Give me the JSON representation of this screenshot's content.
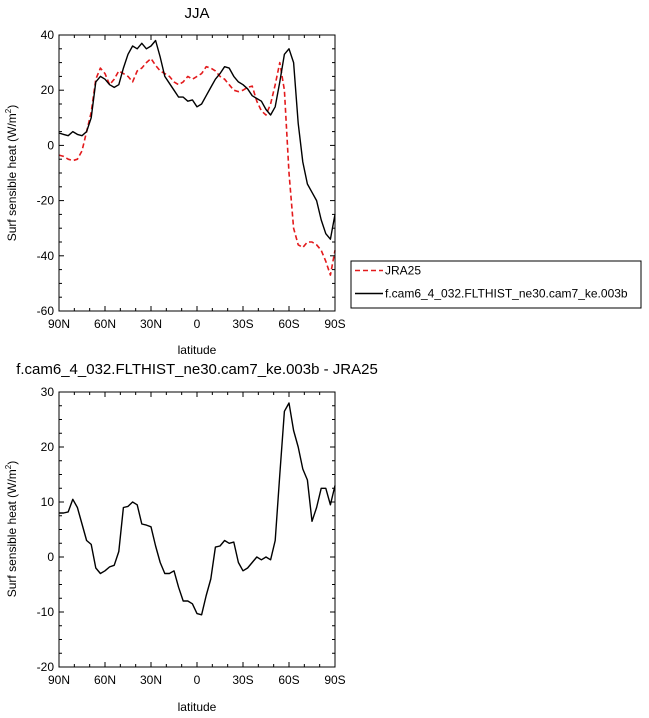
{
  "chart_data": [
    {
      "type": "line",
      "title": "JJA",
      "xlabel": "latitude",
      "ylabel": "Surf sensible heat (W/m",
      "ylabel_sup": "2",
      "ylabel_close": ")",
      "xlim": [
        90,
        -90
      ],
      "ylim": [
        -60,
        40
      ],
      "x_ticks": [
        90,
        60,
        30,
        0,
        -30,
        -60,
        -90
      ],
      "x_tick_labels": [
        "90N",
        "60N",
        "30N",
        "0",
        "30S",
        "60S",
        "90S"
      ],
      "y_ticks": [
        -60,
        -40,
        -20,
        0,
        20,
        40
      ],
      "y_tick_labels": [
        "-60",
        "-40",
        "-20",
        "0",
        "20",
        "40"
      ],
      "legend": "right",
      "series": [
        {
          "name": "JRA25",
          "color": "#e31a1c",
          "dash": "dashed",
          "x": [
            90,
            87,
            84,
            81,
            78,
            75,
            72,
            69,
            66,
            63,
            60,
            57,
            54,
            51,
            48,
            45,
            42,
            39,
            36,
            33,
            30,
            27,
            24,
            21,
            18,
            15,
            12,
            9,
            6,
            3,
            0,
            -3,
            -6,
            -9,
            -12,
            -15,
            -18,
            -21,
            -24,
            -27,
            -30,
            -33,
            -36,
            -39,
            -42,
            -45,
            -48,
            -51,
            -54,
            -57,
            -60,
            -63,
            -66,
            -69,
            -72,
            -75,
            -78,
            -81,
            -84,
            -87,
            -90
          ],
          "y": [
            -3.5,
            -4,
            -5,
            -5.5,
            -5,
            -2,
            5,
            12,
            24,
            28,
            26,
            22,
            24,
            27,
            26,
            25,
            23,
            27,
            28,
            30,
            31.5,
            29,
            27,
            26,
            25,
            23,
            22,
            23,
            25,
            24,
            25,
            26,
            28.5,
            28,
            27,
            25,
            24,
            22,
            20,
            19.5,
            20,
            21,
            21.5,
            16,
            12.5,
            11,
            15,
            22,
            30,
            20,
            -10,
            -30,
            -36,
            -37,
            -35,
            -35,
            -36,
            -38,
            -42,
            -47,
            -38
          ]
        },
        {
          "name": "f.cam6_4_032.FLTHIST_ne30.cam7_ke.003b",
          "color": "#000000",
          "dash": "solid",
          "x": [
            90,
            87,
            84,
            81,
            78,
            75,
            72,
            69,
            66,
            63,
            60,
            57,
            54,
            51,
            48,
            45,
            42,
            39,
            36,
            33,
            30,
            27,
            24,
            21,
            18,
            15,
            12,
            9,
            6,
            3,
            0,
            -3,
            -6,
            -9,
            -12,
            -15,
            -18,
            -21,
            -24,
            -27,
            -30,
            -33,
            -36,
            -39,
            -42,
            -45,
            -48,
            -51,
            -54,
            -57,
            -60,
            -63,
            -66,
            -69,
            -72,
            -75,
            -78,
            -81,
            -84,
            -87,
            -90
          ],
          "y": [
            4.5,
            4,
            3.5,
            5,
            4,
            3.5,
            5,
            10,
            23,
            25,
            24,
            22,
            21,
            22,
            28,
            33,
            36,
            35,
            37,
            35,
            36,
            38,
            32,
            25,
            22.5,
            20,
            17.5,
            17.5,
            16,
            16.5,
            14,
            15,
            18,
            21,
            24,
            26,
            28.5,
            28,
            25,
            23,
            22,
            20.5,
            18,
            17,
            16,
            13,
            11,
            14,
            23,
            33,
            35,
            30,
            8,
            -6,
            -14,
            -17,
            -20,
            -27,
            -32,
            -34,
            -25
          ]
        }
      ]
    },
    {
      "type": "line",
      "title": "f.cam6_4_032.FLTHIST_ne30.cam7_ke.003b - JRA25",
      "xlabel": "latitude",
      "ylabel": "Surf sensible heat (W/m",
      "ylabel_sup": "2",
      "ylabel_close": ")",
      "xlim": [
        90,
        -90
      ],
      "ylim": [
        -20,
        30
      ],
      "x_ticks": [
        90,
        60,
        30,
        0,
        -30,
        -60,
        -90
      ],
      "x_tick_labels": [
        "90N",
        "60N",
        "30N",
        "0",
        "30S",
        "60S",
        "90S"
      ],
      "y_ticks": [
        -20,
        -10,
        0,
        10,
        20,
        30
      ],
      "y_tick_labels": [
        "-20",
        "-10",
        "0",
        "10",
        "20",
        "30"
      ],
      "series": [
        {
          "color": "#000000",
          "dash": "solid",
          "x": [
            90,
            87,
            84,
            81,
            78,
            75,
            72,
            69,
            66,
            63,
            60,
            57,
            54,
            51,
            48,
            45,
            42,
            39,
            36,
            33,
            30,
            27,
            24,
            21,
            18,
            15,
            12,
            9,
            6,
            3,
            0,
            -3,
            -6,
            -9,
            -12,
            -15,
            -18,
            -21,
            -24,
            -27,
            -30,
            -33,
            -36,
            -39,
            -42,
            -45,
            -48,
            -51,
            -54,
            -57,
            -60,
            -63,
            -66,
            -69,
            -72,
            -75,
            -78,
            -81,
            -84,
            -87,
            -90
          ],
          "y": [
            8,
            8,
            8.2,
            10.5,
            9,
            6,
            3,
            2.3,
            -2,
            -3,
            -2.5,
            -1.8,
            -1.5,
            1,
            9,
            9.2,
            10,
            9.5,
            6,
            5.8,
            5.5,
            2,
            -1,
            -3,
            -3,
            -2.5,
            -5.5,
            -8,
            -8,
            -8.5,
            -10.3,
            -10.5,
            -7,
            -4,
            1.8,
            2,
            3,
            2.5,
            2.7,
            -1,
            -2.5,
            -2,
            -1,
            0,
            -0.5,
            0,
            -0.5,
            3,
            15,
            26.5,
            28,
            23,
            20,
            16,
            14,
            6.5,
            9,
            12.5,
            12.5,
            9.5,
            13
          ]
        }
      ]
    }
  ]
}
